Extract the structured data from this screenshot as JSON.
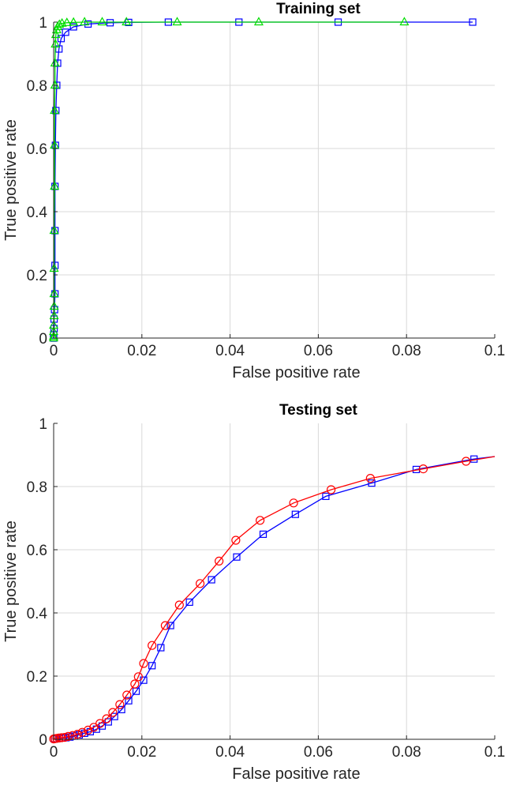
{
  "chart_data": [
    {
      "type": "line",
      "title": "Training set",
      "xlabel": "False positive rate",
      "ylabel": "True positive rate",
      "xlim": [
        0,
        0.1
      ],
      "ylim": [
        0,
        1
      ],
      "xticks": [
        "0",
        "0.02",
        "0.04",
        "0.06",
        "0.08",
        "0.1"
      ],
      "yticks": [
        "0",
        "0.2",
        "0.4",
        "0.6",
        "0.8",
        "1"
      ],
      "grid": true,
      "series": [
        {
          "color": "#0000ff",
          "marker": "square",
          "points": [
            [
              0,
              0
            ],
            [
              0,
              0.01
            ],
            [
              0.0001,
              0.03
            ],
            [
              0.0001,
              0.06
            ],
            [
              0.0002,
              0.09
            ],
            [
              0.0003,
              0.14
            ],
            [
              0.0003,
              0.23
            ],
            [
              0.0003,
              0.34
            ],
            [
              0.0003,
              0.48
            ],
            [
              0.0004,
              0.61
            ],
            [
              0.0005,
              0.72
            ],
            [
              0.0007,
              0.8
            ],
            [
              0.0009,
              0.87
            ],
            [
              0.0012,
              0.915
            ],
            [
              0.0017,
              0.948
            ],
            [
              0.0027,
              0.968
            ],
            [
              0.0045,
              0.985
            ],
            [
              0.0078,
              0.994
            ],
            [
              0.0128,
              0.998
            ],
            [
              0.017,
              0.999
            ],
            [
              0.026,
              1.0
            ],
            [
              0.042,
              1.0
            ],
            [
              0.0645,
              1.0
            ],
            [
              0.095,
              1.0
            ]
          ]
        },
        {
          "color": "#00dd00",
          "marker": "triangle",
          "points": [
            [
              0,
              0
            ],
            [
              0,
              0.005
            ],
            [
              0,
              0.02
            ],
            [
              0,
              0.04
            ],
            [
              0.0001,
              0.07
            ],
            [
              0.0001,
              0.1
            ],
            [
              0.0001,
              0.14
            ],
            [
              0.0001,
              0.22
            ],
            [
              0.0001,
              0.34
            ],
            [
              0.0002,
              0.48
            ],
            [
              0.0002,
              0.61
            ],
            [
              0.0002,
              0.72
            ],
            [
              0.0003,
              0.8
            ],
            [
              0.0003,
              0.87
            ],
            [
              0.0004,
              0.93
            ],
            [
              0.0005,
              0.96
            ],
            [
              0.0007,
              0.975
            ],
            [
              0.0009,
              0.985
            ],
            [
              0.0013,
              0.992
            ],
            [
              0.0019,
              0.996
            ],
            [
              0.003,
              0.998
            ],
            [
              0.0045,
              0.999
            ],
            [
              0.007,
              1.0
            ],
            [
              0.011,
              1.0
            ],
            [
              0.0165,
              1.0
            ],
            [
              0.028,
              1.0
            ],
            [
              0.0465,
              1.0
            ],
            [
              0.0795,
              1.0
            ]
          ]
        }
      ]
    },
    {
      "type": "line",
      "title": "Testing set",
      "xlabel": "False positive rate",
      "ylabel": "True positive rate",
      "xlim": [
        0,
        0.1
      ],
      "ylim": [
        0,
        1
      ],
      "xticks": [
        "0",
        "0.02",
        "0.04",
        "0.06",
        "0.08",
        "0.1"
      ],
      "yticks": [
        "0",
        "0.2",
        "0.4",
        "0.6",
        "0.8",
        "1"
      ],
      "grid": true,
      "series": [
        {
          "color": "#0000ff",
          "marker": "square",
          "points": [
            [
              0.0002,
              0.001
            ],
            [
              0.0007,
              0.002
            ],
            [
              0.0013,
              0.003
            ],
            [
              0.002,
              0.004
            ],
            [
              0.0028,
              0.005
            ],
            [
              0.0037,
              0.007
            ],
            [
              0.0047,
              0.01
            ],
            [
              0.0058,
              0.014
            ],
            [
              0.007,
              0.019
            ],
            [
              0.0083,
              0.024
            ],
            [
              0.0097,
              0.032
            ],
            [
              0.011,
              0.042
            ],
            [
              0.0124,
              0.055
            ],
            [
              0.0138,
              0.072
            ],
            [
              0.0154,
              0.094
            ],
            [
              0.017,
              0.122
            ],
            [
              0.0187,
              0.152
            ],
            [
              0.0204,
              0.187
            ],
            [
              0.0223,
              0.233
            ],
            [
              0.0243,
              0.29
            ],
            [
              0.0265,
              0.36
            ],
            [
              0.0308,
              0.434
            ],
            [
              0.0358,
              0.505
            ],
            [
              0.0415,
              0.577
            ],
            [
              0.0475,
              0.649
            ],
            [
              0.0548,
              0.712
            ],
            [
              0.0617,
              0.769
            ],
            [
              0.0721,
              0.811
            ],
            [
              0.0822,
              0.854
            ],
            [
              0.0953,
              0.887
            ]
          ],
          "extend_to": [
            0.1,
            0.895
          ]
        },
        {
          "color": "#ff0000",
          "marker": "circle",
          "points": [
            [
              0,
              0.001
            ],
            [
              0.0003,
              0.002
            ],
            [
              0.0007,
              0.003
            ],
            [
              0.0012,
              0.004
            ],
            [
              0.0018,
              0.005
            ],
            [
              0.0025,
              0.006
            ],
            [
              0.0033,
              0.009
            ],
            [
              0.0043,
              0.012
            ],
            [
              0.0054,
              0.016
            ],
            [
              0.0065,
              0.022
            ],
            [
              0.0078,
              0.029
            ],
            [
              0.0091,
              0.038
            ],
            [
              0.0105,
              0.05
            ],
            [
              0.012,
              0.065
            ],
            [
              0.0134,
              0.085
            ],
            [
              0.015,
              0.11
            ],
            [
              0.0166,
              0.14
            ],
            [
              0.0184,
              0.175
            ],
            [
              0.0192,
              0.198
            ],
            [
              0.0204,
              0.24
            ],
            [
              0.0223,
              0.297
            ],
            [
              0.0253,
              0.36
            ],
            [
              0.0285,
              0.425
            ],
            [
              0.0332,
              0.493
            ],
            [
              0.0375,
              0.564
            ],
            [
              0.0413,
              0.63
            ],
            [
              0.0468,
              0.693
            ],
            [
              0.0544,
              0.748
            ],
            [
              0.0629,
              0.79
            ],
            [
              0.0718,
              0.826
            ],
            [
              0.0838,
              0.856
            ],
            [
              0.0935,
              0.88
            ]
          ],
          "extend_to": [
            0.1,
            0.895
          ]
        }
      ]
    }
  ]
}
